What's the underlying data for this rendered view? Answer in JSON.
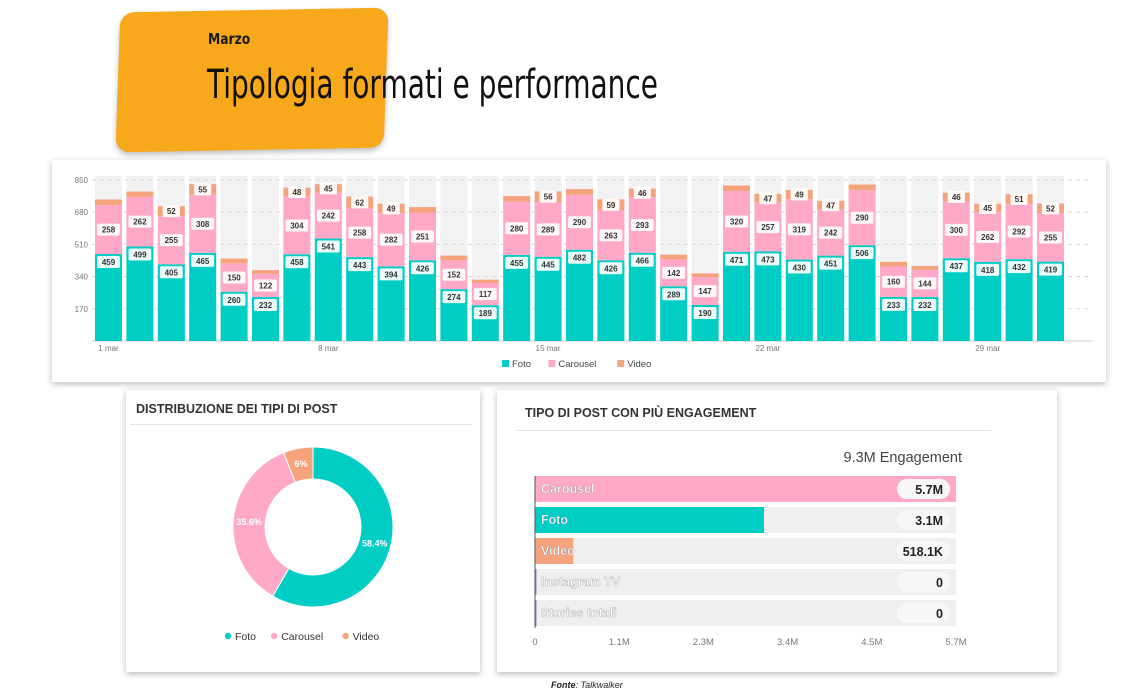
{
  "header": {
    "subtitle": "Marzo",
    "title": "Tipologia formati e performance"
  },
  "colors": {
    "foto": "#00cec5",
    "carousel": "#ffa8c8",
    "video": "#f5a37d",
    "accent": "#f7a81b"
  },
  "source": {
    "label": "Fonte",
    "value": "Talkwalker"
  },
  "chart_data": [
    {
      "type": "bar",
      "stacked": true,
      "ylim": [
        0,
        850
      ],
      "yticks": [
        "170",
        "340",
        "510",
        "680",
        "850"
      ],
      "xtick_labels": [
        {
          "day": 1,
          "label": "1 mar"
        },
        {
          "day": 8,
          "label": "8 mar"
        },
        {
          "day": 15,
          "label": "15 mar"
        },
        {
          "day": 22,
          "label": "22 mar"
        },
        {
          "day": 29,
          "label": "29 mar"
        }
      ],
      "days": [
        1,
        2,
        3,
        4,
        5,
        6,
        7,
        8,
        9,
        10,
        11,
        12,
        13,
        14,
        15,
        16,
        17,
        18,
        19,
        20,
        21,
        22,
        23,
        24,
        25,
        26,
        27,
        28,
        29,
        30,
        31
      ],
      "series": [
        {
          "name": "Foto",
          "color": "#00cec5",
          "values": [
            459,
            499,
            405,
            465,
            260,
            232,
            458,
            541,
            443,
            394,
            426,
            274,
            189,
            455,
            445,
            482,
            426,
            466,
            289,
            190,
            471,
            473,
            430,
            451,
            506,
            233,
            232,
            437,
            418,
            432,
            419
          ]
        },
        {
          "name": "Carousel",
          "color": "#ffa8c8",
          "values": [
            258,
            262,
            255,
            308,
            150,
            122,
            304,
            242,
            258,
            282,
            251,
            152,
            117,
            280,
            289,
            290,
            263,
            293,
            142,
            147,
            320,
            257,
            319,
            242,
            290,
            160,
            144,
            300,
            262,
            292,
            255
          ]
        },
        {
          "name": "Video",
          "color": "#f5a37d",
          "values": [
            30,
            28,
            52,
            55,
            25,
            20,
            48,
            45,
            62,
            49,
            30,
            25,
            18,
            30,
            56,
            30,
            59,
            46,
            25,
            20,
            30,
            47,
            49,
            47,
            30,
            25,
            20,
            46,
            45,
            51,
            52
          ]
        }
      ],
      "video_labels": [
        "",
        "",
        "52",
        "55",
        "",
        "",
        "48",
        "45",
        "62",
        "49",
        "",
        "",
        "",
        "",
        "56",
        "",
        "59",
        "46",
        "",
        "",
        "",
        "47",
        "49",
        "47",
        "",
        "",
        "",
        "46",
        "45",
        "51",
        "52"
      ]
    },
    {
      "type": "pie",
      "title": "DISTRIBUZIONE DEI TIPI DI POST",
      "labels": [
        "Foto",
        "Carousel",
        "Video"
      ],
      "values": [
        58.4,
        35.6,
        6
      ],
      "value_labels": [
        "58.4%",
        "35.6%",
        "6%"
      ],
      "colors": [
        "#00cec5",
        "#ffa8c8",
        "#f5a37d"
      ]
    },
    {
      "type": "bar",
      "orientation": "horizontal",
      "title": "TIPO DI POST CON PIÙ ENGAGEMENT",
      "total_label": "9.3M Engagement",
      "categories": [
        "Carousel",
        "Foto",
        "Video",
        "Instagram TV",
        "Stories totali"
      ],
      "values": [
        5700000,
        3100000,
        518100,
        0,
        0
      ],
      "value_labels": [
        "5.7M",
        "3.1M",
        "518.1K",
        "0",
        "0"
      ],
      "colors": [
        "#ffa8c8",
        "#00cec5",
        "#f5a37d",
        "#8a8ad0",
        "#8a8ad0"
      ],
      "xlim": [
        0,
        5700000
      ],
      "xticks": [
        "0",
        "1.1M",
        "2.3M",
        "3.4M",
        "4.5M",
        "5.7M"
      ]
    }
  ]
}
